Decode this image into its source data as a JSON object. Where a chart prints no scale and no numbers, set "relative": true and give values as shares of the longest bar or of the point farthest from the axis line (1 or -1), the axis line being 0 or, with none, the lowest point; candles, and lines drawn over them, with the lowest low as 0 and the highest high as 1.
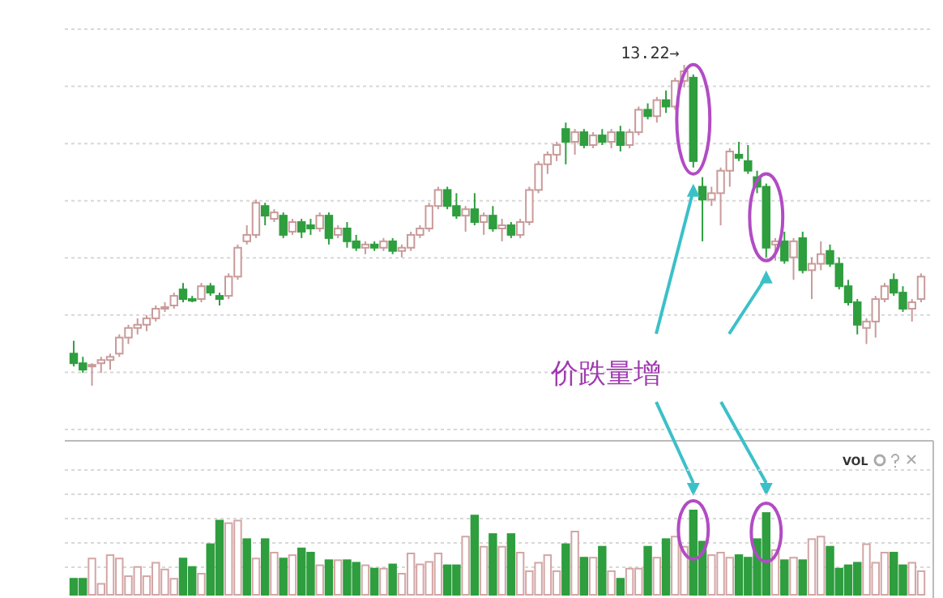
{
  "chart_data": [
    {
      "type": "candlestick",
      "relative": true,
      "grid": true,
      "categories": [
        null,
        null,
        null,
        null,
        null,
        null,
        null,
        null,
        null,
        null,
        null,
        null,
        null,
        null,
        null,
        null,
        null,
        null,
        null,
        null,
        null,
        null,
        null,
        null,
        null,
        null,
        null,
        null,
        null,
        null,
        null,
        null,
        null,
        null,
        null,
        null,
        null,
        null,
        null,
        null,
        null,
        null,
        null,
        null,
        null,
        null,
        null,
        null,
        null,
        null,
        null,
        null,
        null,
        null,
        null,
        null,
        null,
        null,
        null,
        null,
        null,
        null,
        null,
        null,
        null,
        null,
        null,
        null,
        null,
        null,
        null,
        null,
        null,
        null,
        null,
        null,
        null,
        null,
        null,
        null,
        null,
        null,
        null,
        null,
        null,
        null,
        null,
        null,
        null,
        null,
        null,
        null,
        null,
        null
      ],
      "ohlc": [
        [
          0.1,
          0.14,
          0.06,
          0.07
        ],
        [
          0.07,
          0.09,
          0.04,
          0.05
        ],
        [
          0.06,
          0.07,
          0.0,
          0.065
        ],
        [
          0.07,
          0.09,
          0.04,
          0.08
        ],
        [
          0.08,
          0.1,
          0.05,
          0.09
        ],
        [
          0.1,
          0.16,
          0.09,
          0.15
        ],
        [
          0.15,
          0.19,
          0.13,
          0.18
        ],
        [
          0.18,
          0.21,
          0.16,
          0.19
        ],
        [
          0.19,
          0.22,
          0.17,
          0.21
        ],
        [
          0.21,
          0.25,
          0.2,
          0.24
        ],
        [
          0.24,
          0.26,
          0.23,
          0.245
        ],
        [
          0.25,
          0.29,
          0.24,
          0.28
        ],
        [
          0.3,
          0.32,
          0.26,
          0.27
        ],
        [
          0.27,
          0.28,
          0.26,
          0.265
        ],
        [
          0.27,
          0.32,
          0.26,
          0.31
        ],
        [
          0.31,
          0.32,
          0.28,
          0.29
        ],
        [
          0.28,
          0.29,
          0.25,
          0.27
        ],
        [
          0.28,
          0.35,
          0.27,
          0.34
        ],
        [
          0.34,
          0.44,
          0.33,
          0.43
        ],
        [
          0.45,
          0.5,
          0.44,
          0.47
        ],
        [
          0.47,
          0.58,
          0.46,
          0.57
        ],
        [
          0.56,
          0.57,
          0.5,
          0.53
        ],
        [
          0.52,
          0.55,
          0.51,
          0.54
        ],
        [
          0.53,
          0.54,
          0.46,
          0.47
        ],
        [
          0.48,
          0.52,
          0.47,
          0.51
        ],
        [
          0.51,
          0.52,
          0.46,
          0.48
        ],
        [
          0.5,
          0.52,
          0.47,
          0.49
        ],
        [
          0.49,
          0.54,
          0.48,
          0.53
        ],
        [
          0.53,
          0.54,
          0.44,
          0.46
        ],
        [
          0.47,
          0.5,
          0.46,
          0.49
        ],
        [
          0.49,
          0.51,
          0.43,
          0.45
        ],
        [
          0.45,
          0.47,
          0.42,
          0.43
        ],
        [
          0.43,
          0.45,
          0.41,
          0.44
        ],
        [
          0.44,
          0.45,
          0.42,
          0.43
        ],
        [
          0.43,
          0.46,
          0.42,
          0.45
        ],
        [
          0.45,
          0.46,
          0.41,
          0.42
        ],
        [
          0.42,
          0.44,
          0.4,
          0.43
        ],
        [
          0.43,
          0.48,
          0.42,
          0.47
        ],
        [
          0.47,
          0.5,
          0.46,
          0.49
        ],
        [
          0.49,
          0.57,
          0.48,
          0.56
        ],
        [
          0.56,
          0.62,
          0.55,
          0.61
        ],
        [
          0.61,
          0.62,
          0.55,
          0.56
        ],
        [
          0.56,
          0.6,
          0.52,
          0.53
        ],
        [
          0.53,
          0.56,
          0.48,
          0.55
        ],
        [
          0.55,
          0.6,
          0.5,
          0.51
        ],
        [
          0.51,
          0.54,
          0.47,
          0.53
        ],
        [
          0.53,
          0.56,
          0.48,
          0.49
        ],
        [
          0.49,
          0.52,
          0.45,
          0.5
        ],
        [
          0.5,
          0.51,
          0.46,
          0.47
        ],
        [
          0.47,
          0.52,
          0.46,
          0.51
        ],
        [
          0.51,
          0.62,
          0.5,
          0.61
        ],
        [
          0.61,
          0.7,
          0.6,
          0.69
        ],
        [
          0.69,
          0.73,
          0.66,
          0.72
        ],
        [
          0.72,
          0.76,
          0.7,
          0.75
        ],
        [
          0.8,
          0.82,
          0.69,
          0.76
        ],
        [
          0.76,
          0.8,
          0.72,
          0.79
        ],
        [
          0.79,
          0.8,
          0.74,
          0.75
        ],
        [
          0.75,
          0.79,
          0.74,
          0.78
        ],
        [
          0.78,
          0.8,
          0.75,
          0.76
        ],
        [
          0.76,
          0.8,
          0.74,
          0.79
        ],
        [
          0.79,
          0.81,
          0.73,
          0.75
        ],
        [
          0.75,
          0.8,
          0.74,
          0.79
        ],
        [
          0.79,
          0.87,
          0.78,
          0.86
        ],
        [
          0.86,
          0.88,
          0.83,
          0.84
        ],
        [
          0.84,
          0.9,
          0.82,
          0.89
        ],
        [
          0.89,
          0.92,
          0.85,
          0.87
        ],
        [
          0.87,
          0.96,
          0.86,
          0.95
        ],
        [
          0.95,
          1.0,
          0.93,
          0.98
        ],
        [
          0.96,
          0.97,
          0.68,
          0.7
        ],
        [
          0.62,
          0.65,
          0.45,
          0.58
        ],
        [
          0.58,
          0.62,
          0.56,
          0.6
        ],
        [
          0.6,
          0.68,
          0.5,
          0.67
        ],
        [
          0.67,
          0.74,
          0.62,
          0.73
        ],
        [
          0.72,
          0.76,
          0.7,
          0.71
        ],
        [
          0.7,
          0.75,
          0.66,
          0.67
        ],
        [
          0.65,
          0.67,
          0.6,
          0.62
        ],
        [
          0.62,
          0.63,
          0.4,
          0.43
        ],
        [
          0.44,
          0.46,
          0.39,
          0.45
        ],
        [
          0.45,
          0.48,
          0.38,
          0.39
        ],
        [
          0.4,
          0.46,
          0.33,
          0.45
        ],
        [
          0.46,
          0.48,
          0.35,
          0.36
        ],
        [
          0.36,
          0.4,
          0.27,
          0.38
        ],
        [
          0.38,
          0.45,
          0.36,
          0.41
        ],
        [
          0.42,
          0.44,
          0.37,
          0.38
        ],
        [
          0.38,
          0.4,
          0.3,
          0.31
        ],
        [
          0.31,
          0.33,
          0.25,
          0.26
        ],
        [
          0.26,
          0.27,
          0.16,
          0.19
        ],
        [
          0.18,
          0.21,
          0.13,
          0.2
        ],
        [
          0.2,
          0.28,
          0.15,
          0.27
        ],
        [
          0.27,
          0.32,
          0.26,
          0.31
        ],
        [
          0.33,
          0.35,
          0.28,
          0.29
        ],
        [
          0.29,
          0.31,
          0.23,
          0.24
        ],
        [
          0.24,
          0.27,
          0.2,
          0.26
        ],
        [
          0.27,
          0.35,
          0.26,
          0.34
        ]
      ],
      "annotations": [
        "13.22→",
        "价跌量增"
      ]
    },
    {
      "type": "bar",
      "title": "VOL",
      "relative": true,
      "grid": true,
      "categories": [
        null,
        null,
        null,
        null,
        null,
        null,
        null,
        null,
        null,
        null,
        null,
        null,
        null,
        null,
        null,
        null,
        null,
        null,
        null,
        null,
        null,
        null,
        null,
        null,
        null,
        null,
        null,
        null,
        null,
        null,
        null,
        null,
        null,
        null,
        null,
        null,
        null,
        null,
        null,
        null,
        null,
        null,
        null,
        null,
        null,
        null,
        null,
        null,
        null,
        null,
        null,
        null,
        null,
        null,
        null,
        null,
        null,
        null,
        null,
        null,
        null,
        null,
        null,
        null,
        null,
        null,
        null,
        null,
        null,
        null,
        null,
        null,
        null,
        null,
        null,
        null,
        null,
        null,
        null,
        null,
        null,
        null,
        null,
        null,
        null,
        null,
        null,
        null,
        null,
        null,
        null,
        null,
        null,
        null
      ],
      "values": [
        0.19,
        0.19,
        0.43,
        0.13,
        0.47,
        0.43,
        0.22,
        0.33,
        0.22,
        0.38,
        0.3,
        0.19,
        0.43,
        0.33,
        0.25,
        0.6,
        0.88,
        0.85,
        0.88,
        0.66,
        0.43,
        0.66,
        0.5,
        0.43,
        0.47,
        0.55,
        0.5,
        0.35,
        0.41,
        0.41,
        0.41,
        0.38,
        0.35,
        0.31,
        0.31,
        0.36,
        0.25,
        0.49,
        0.36,
        0.39,
        0.49,
        0.35,
        0.35,
        0.69,
        0.94,
        0.57,
        0.72,
        0.57,
        0.72,
        0.5,
        0.28,
        0.38,
        0.47,
        0.28,
        0.6,
        0.75,
        0.44,
        0.44,
        0.57,
        0.28,
        0.19,
        0.31,
        0.31,
        0.57,
        0.44,
        0.66,
        0.69,
        0.57,
        1.0,
        0.63,
        0.47,
        0.5,
        0.44,
        0.47,
        0.44,
        0.66,
        0.97,
        0.53,
        0.41,
        0.44,
        0.41,
        0.66,
        0.69,
        0.57,
        0.31,
        0.35,
        0.38,
        0.6,
        0.38,
        0.5,
        0.5,
        0.35,
        0.38,
        0.28
      ],
      "colors": [
        "#2e9e3e",
        "#2e9e3e",
        "#d4a5a5",
        "#d4a5a5",
        "#d4a5a5",
        "#d4a5a5",
        "#d4a5a5",
        "#d4a5a5",
        "#d4a5a5",
        "#d4a5a5",
        "#d4a5a5",
        "#d4a5a5",
        "#2e9e3e",
        "#2e9e3e",
        "#d4a5a5",
        "#2e9e3e",
        "#2e9e3e",
        "#d4a5a5",
        "#d4a5a5",
        "#2e9e3e",
        "#d4a5a5",
        "#2e9e3e",
        "#d4a5a5",
        "#2e9e3e",
        "#d4a5a5",
        "#2e9e3e",
        "#2e9e3e",
        "#d4a5a5",
        "#2e9e3e",
        "#d4a5a5",
        "#2e9e3e",
        "#2e9e3e",
        "#d4a5a5",
        "#2e9e3e",
        "#d4a5a5",
        "#2e9e3e",
        "#d4a5a5",
        "#d4a5a5",
        "#d4a5a5",
        "#d4a5a5",
        "#d4a5a5",
        "#2e9e3e",
        "#2e9e3e",
        "#d4a5a5",
        "#2e9e3e",
        "#d4a5a5",
        "#2e9e3e",
        "#d4a5a5",
        "#2e9e3e",
        "#d4a5a5",
        "#d4a5a5",
        "#d4a5a5",
        "#d4a5a5",
        "#d4a5a5",
        "#2e9e3e",
        "#d4a5a5",
        "#2e9e3e",
        "#d4a5a5",
        "#2e9e3e",
        "#d4a5a5",
        "#2e9e3e",
        "#d4a5a5",
        "#d4a5a5",
        "#2e9e3e",
        "#d4a5a5",
        "#2e9e3e",
        "#d4a5a5",
        "#d4a5a5",
        "#2e9e3e",
        "#2e9e3e",
        "#d4a5a5",
        "#d4a5a5",
        "#d4a5a5",
        "#2e9e3e",
        "#2e9e3e",
        "#2e9e3e",
        "#2e9e3e",
        "#d4a5a5",
        "#2e9e3e",
        "#d4a5a5",
        "#2e9e3e",
        "#d4a5a5",
        "#d4a5a5",
        "#2e9e3e",
        "#2e9e3e",
        "#2e9e3e",
        "#2e9e3e",
        "#d4a5a5",
        "#d4a5a5",
        "#d4a5a5",
        "#2e9e3e",
        "#2e9e3e",
        "#d4a5a5",
        "#d4a5a5"
      ]
    }
  ]
}
